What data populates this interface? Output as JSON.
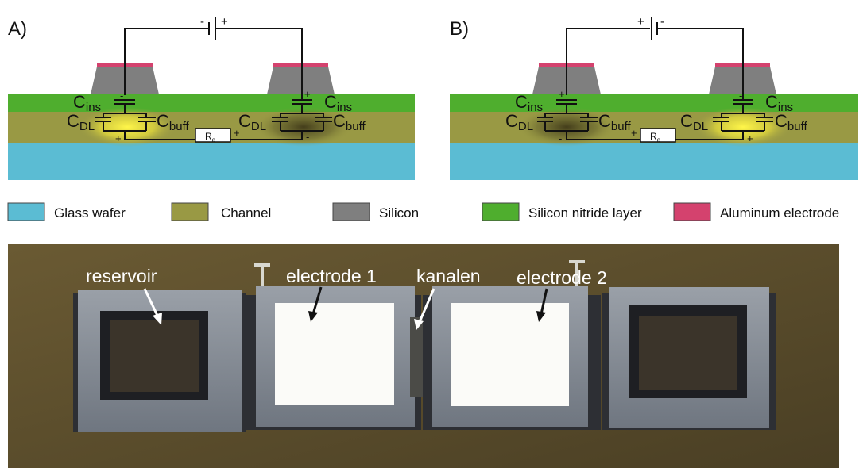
{
  "panels": {
    "a": {
      "label": "A)"
    },
    "b": {
      "label": "B)"
    }
  },
  "symbols": {
    "c_main": "C",
    "sub_ins": "ins",
    "sub_dl": "DL",
    "sub_buff": "buff",
    "r_main": "R",
    "r_sub": "e",
    "plus": "+",
    "minus": "-"
  },
  "legend": {
    "items": [
      {
        "label": "Glass wafer",
        "color": "#5bbcd3"
      },
      {
        "label": "Channel",
        "color": "#999944"
      },
      {
        "label": "Silicon",
        "color": "#7f7f7f"
      },
      {
        "label": "Silicon nitride layer",
        "color": "#4fae2e"
      },
      {
        "label": "Aluminum electrode",
        "color": "#d4426e"
      }
    ]
  },
  "photo": {
    "labels": {
      "reservoir": "reservoir",
      "electrode1": "electrode 1",
      "channel": "kanalen",
      "electrode2": "electrode 2"
    }
  },
  "colors": {
    "glass": "#5bbcd3",
    "channel": "#999944",
    "silicon": "#7f7f7f",
    "nitride": "#4fae2e",
    "aluminum": "#d4426e",
    "glow": "#ffee33",
    "photo_bg": "#5c4f2e"
  }
}
